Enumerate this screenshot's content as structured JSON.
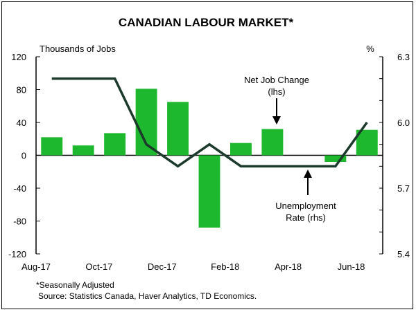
{
  "chart_data": {
    "type": "bar+line",
    "title": "CANADIAN LABOUR MARKET*",
    "left_axis_label": "Thousands of Jobs",
    "right_axis_label": "%",
    "left_ticks": [
      "120",
      "80",
      "40",
      "0",
      "-40",
      "-80",
      "-120"
    ],
    "right_ticks": [
      "6.3",
      "6.0",
      "5.7",
      "5.4"
    ],
    "x_tick_labels": [
      "Aug-17",
      "Oct-17",
      "Dec-17",
      "Feb-18",
      "Apr-18",
      "Jun-18"
    ],
    "months": [
      "Aug-17",
      "Sep-17",
      "Oct-17",
      "Nov-17",
      "Dec-17",
      "Jan-18",
      "Feb-18",
      "Mar-18",
      "Apr-18",
      "May-18",
      "Jun-18"
    ],
    "ylim_left": [
      -120,
      120
    ],
    "ylim_right": [
      5.4,
      6.3
    ],
    "series": [
      {
        "name": "Net Job Change (lhs)",
        "kind": "bar",
        "axis": "left",
        "color": "#1DB82E",
        "values": [
          22,
          12,
          27,
          81,
          65,
          -88,
          15,
          32,
          0,
          -8,
          31
        ]
      },
      {
        "name": "Unemployment Rate (rhs)",
        "kind": "line",
        "axis": "right",
        "color": "#1C3A2B",
        "values": [
          6.2,
          6.2,
          6.2,
          5.9,
          5.8,
          5.9,
          5.8,
          5.8,
          5.8,
          5.8,
          6.0
        ]
      }
    ],
    "annotations": [
      {
        "text_lines": [
          "Net Job Change",
          "(lhs)"
        ],
        "target": "bar"
      },
      {
        "text_lines": [
          "Unemployment",
          "Rate (rhs)"
        ],
        "target": "line"
      }
    ]
  },
  "footnotes": {
    "line1": "*Seasonally Adjusted",
    "line2": "Source: Statistics Canada, Haver Analytics, TD Economics."
  }
}
